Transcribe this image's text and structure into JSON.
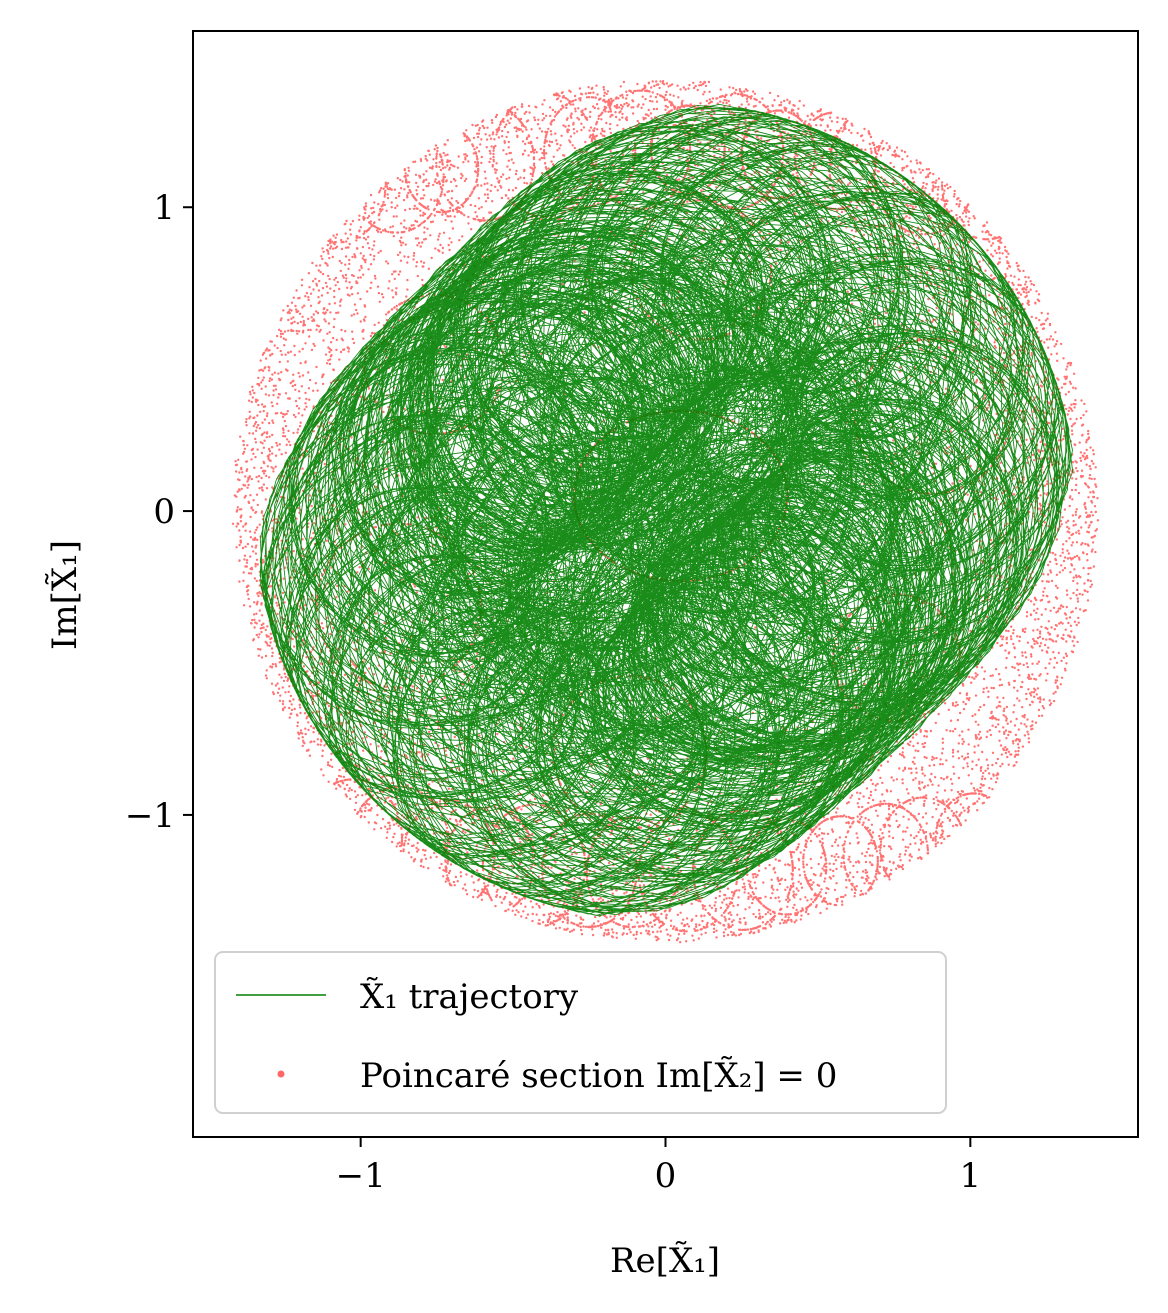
{
  "chart_data": {
    "type": "scatter",
    "xlabel": "Re[X̃₁]",
    "ylabel": "Im[X̃₁]",
    "xlim": [
      -1.55,
      1.55
    ],
    "ylim": [
      -2.06,
      1.58
    ],
    "xticks": [
      {
        "value": -1,
        "label": "−1"
      },
      {
        "value": 0,
        "label": "0"
      },
      {
        "value": 1,
        "label": "1"
      }
    ],
    "yticks": [
      {
        "value": 1,
        "label": "1"
      },
      {
        "value": 0,
        "label": "0"
      },
      {
        "value": -1,
        "label": "−1"
      }
    ],
    "grid": false,
    "legend_position": "lower-left",
    "series": [
      {
        "name": "X̃₁ trajectory",
        "kind": "line",
        "color": "#008000",
        "approx_radius_max": 1.35
      },
      {
        "name": "Poincaré section Im[X̃₂] = 0",
        "kind": "scatter",
        "color": "#ff0000",
        "approx_radius_max": 1.42
      }
    ]
  }
}
